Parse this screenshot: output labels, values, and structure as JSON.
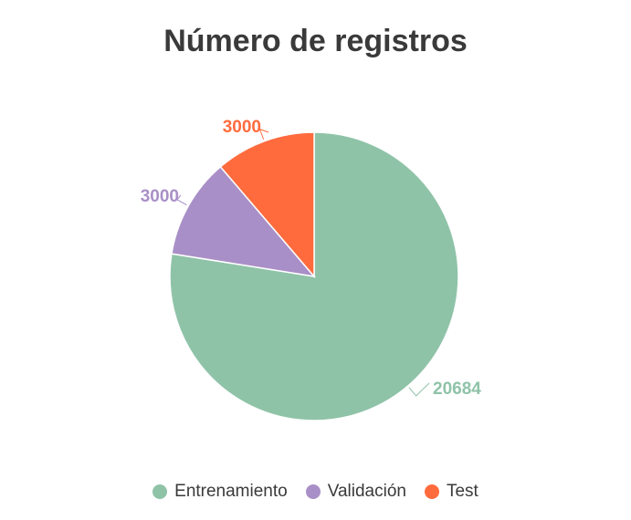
{
  "chart_data": {
    "type": "pie",
    "title": "Número de registros",
    "slices": [
      {
        "name": "Entrenamiento",
        "value": 20684,
        "label": "20684",
        "color": "#8fc3a8"
      },
      {
        "name": "Validación",
        "value": 3000,
        "label": "3000",
        "color": "#a98fc7"
      },
      {
        "name": "Test",
        "value": 3000,
        "label": "3000",
        "color": "#ff6b3d"
      }
    ],
    "legend_position": "bottom"
  }
}
